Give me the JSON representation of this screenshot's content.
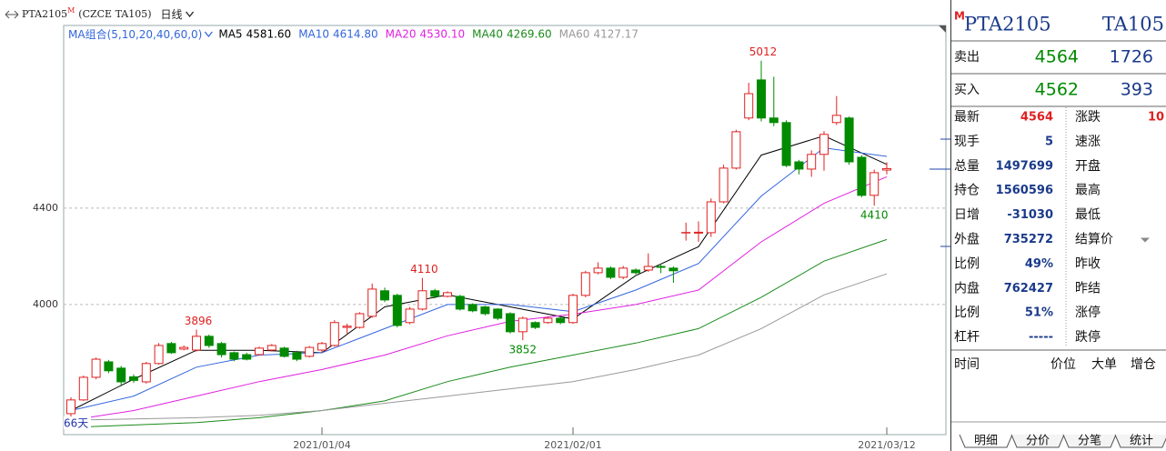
{
  "chart_data": {
    "type": "candlestick",
    "symbol": "PTA2105",
    "symbol_mark": "M",
    "exchange_code": "(CZCE TA105)",
    "period": "日线",
    "indicator_title": "MA组合(5,10,20,40,60,0)",
    "period_count_label": "66天",
    "categories": [
      null,
      null,
      null,
      null,
      null,
      null,
      null,
      null,
      null,
      null,
      null,
      null,
      null,
      null,
      null,
      null,
      null,
      null,
      null,
      null,
      "2021/01/04",
      null,
      null,
      null,
      null,
      null,
      null,
      null,
      null,
      null,
      null,
      null,
      null,
      null,
      null,
      null,
      null,
      null,
      null,
      null,
      "2021/02/01",
      null,
      null,
      null,
      null,
      null,
      null,
      null,
      null,
      null,
      null,
      null,
      null,
      null,
      null,
      null,
      null,
      null,
      null,
      null,
      null,
      null,
      null,
      null,
      null,
      "2021/03/12"
    ],
    "open": [
      3547,
      3604,
      3698,
      3762,
      3736,
      3700,
      3679,
      3755,
      3838,
      3815,
      3811,
      3868,
      3838,
      3800,
      3792,
      3792,
      3811,
      3819,
      3800,
      3785,
      3811,
      3830,
      3905,
      3905,
      3951,
      4057,
      4038,
      3925,
      3981,
      4057,
      4034,
      4034,
      4000,
      3990,
      3981,
      3962,
      3887,
      3925,
      3925,
      3943,
      3925,
      4038,
      4132,
      4151,
      4113,
      4143,
      4143,
      4158,
      4151,
      4298,
      4298,
      4298,
      4426,
      4566,
      4774,
      4932,
      4774,
      4755,
      4592,
      4562,
      4623,
      4755,
      4774,
      4611,
      4453,
      4558
    ],
    "high": [
      3615,
      3705,
      3780,
      3770,
      3745,
      3710,
      3762,
      3840,
      3845,
      3830,
      3896,
      3875,
      3845,
      3805,
      3800,
      3825,
      3836,
      3825,
      3808,
      3828,
      3845,
      3935,
      3920,
      3968,
      4087,
      4070,
      4045,
      3990,
      4110,
      4065,
      4055,
      4040,
      4005,
      3995,
      3985,
      3968,
      3950,
      3930,
      3950,
      3948,
      4045,
      4140,
      4175,
      4158,
      4160,
      4150,
      4212,
      4170,
      4158,
      4340,
      4345,
      4440,
      4580,
      4725,
      4920,
      5012,
      4945,
      4765,
      4600,
      4640,
      4720,
      4865,
      4780,
      4620,
      4560,
      4590
    ],
    "low": [
      3530,
      3600,
      3690,
      3715,
      3665,
      3675,
      3672,
      3750,
      3795,
      3810,
      3805,
      3820,
      3780,
      3765,
      3768,
      3788,
      3805,
      3780,
      3765,
      3780,
      3800,
      3825,
      3880,
      3900,
      3945,
      4010,
      3905,
      3918,
      3975,
      4025,
      4030,
      3975,
      3968,
      3955,
      3935,
      3880,
      3852,
      3898,
      3920,
      3918,
      3920,
      4030,
      4125,
      4105,
      4105,
      4125,
      4135,
      4130,
      4090,
      4265,
      4260,
      4280,
      4420,
      4560,
      4765,
      4760,
      4740,
      4570,
      4540,
      4530,
      4555,
      4745,
      4580,
      4445,
      4410,
      4540
    ],
    "close": [
      3604,
      3698,
      3773,
      3725,
      3679,
      3685,
      3755,
      3830,
      3800,
      3822,
      3868,
      3830,
      3792,
      3773,
      3773,
      3819,
      3830,
      3785,
      3773,
      3822,
      3838,
      3925,
      3910,
      3962,
      4064,
      4019,
      3913,
      3981,
      4057,
      4034,
      4049,
      3981,
      3974,
      3962,
      3943,
      3887,
      3943,
      3905,
      3943,
      3925,
      4038,
      4132,
      4151,
      4113,
      4151,
      4132,
      4158,
      4155,
      4140,
      4298,
      4300,
      4426,
      4566,
      4717,
      4875,
      4774,
      4755,
      4577,
      4562,
      4623,
      4706,
      4785,
      4592,
      4453,
      4547,
      4564
    ],
    "up_color": "#e02020",
    "down_color": "#008a00",
    "ma": [
      {
        "name": "MA5",
        "color": "#000000",
        "current_label": "4581.60",
        "x": [
          0,
          5,
          10,
          15,
          20,
          25,
          30,
          35,
          40,
          45,
          50,
          55,
          60,
          65
        ],
        "values": [
          3560,
          3690,
          3810,
          3810,
          3800,
          3990,
          4040,
          3990,
          3940,
          4120,
          4240,
          4620,
          4700,
          4581.6
        ]
      },
      {
        "name": "MA10",
        "color": "#3366dd",
        "current_label": "4614.80",
        "x": [
          0,
          5,
          10,
          15,
          20,
          25,
          30,
          35,
          40,
          45,
          50,
          55,
          60,
          65
        ],
        "values": [
          3560,
          3620,
          3740,
          3790,
          3800,
          3900,
          4000,
          4000,
          3970,
          4060,
          4170,
          4450,
          4650,
          4614.8
        ]
      },
      {
        "name": "MA20",
        "color": "#e020e0",
        "current_label": "4530.10",
        "x": [
          0,
          5,
          10,
          15,
          20,
          25,
          30,
          35,
          40,
          45,
          50,
          55,
          60,
          65
        ],
        "values": [
          3520,
          3560,
          3620,
          3680,
          3730,
          3790,
          3870,
          3930,
          3960,
          4000,
          4060,
          4260,
          4420,
          4530.1
        ]
      },
      {
        "name": "MA40",
        "color": "#1a8a1a",
        "current_label": "4269.60",
        "x": [
          0,
          5,
          10,
          15,
          20,
          25,
          30,
          35,
          40,
          45,
          50,
          55,
          60,
          65
        ],
        "values": [
          3490,
          3500,
          3510,
          3530,
          3560,
          3600,
          3680,
          3740,
          3790,
          3840,
          3900,
          4030,
          4180,
          4269.6
        ]
      },
      {
        "name": "MA60",
        "color": "#999999",
        "current_label": "4127.17",
        "x": [
          0,
          5,
          10,
          15,
          20,
          25,
          30,
          35,
          40,
          45,
          50,
          55,
          60,
          65
        ],
        "values": [
          3520,
          3525,
          3530,
          3540,
          3560,
          3590,
          3620,
          3650,
          3680,
          3730,
          3790,
          3900,
          4040,
          4127.17
        ]
      }
    ],
    "annotations": [
      {
        "index": 10,
        "value": 3896
      },
      {
        "index": 28,
        "value": 4110
      },
      {
        "index": 36,
        "value": 3852
      },
      {
        "index": 55,
        "value": 5012
      },
      {
        "index": 64,
        "value": 4410
      }
    ],
    "ylim": [
      3460,
      5158
    ],
    "yticks": [
      4000,
      4400
    ],
    "grid": true
  },
  "quote_panel": {
    "mark": "M",
    "symbol": "PTA2105",
    "code": "TA105",
    "ask": {
      "label": "卖出",
      "price": "4564",
      "volume": "1726"
    },
    "bid": {
      "label": "买入",
      "price": "4562",
      "volume": "393"
    },
    "rows": [
      {
        "label": "最新",
        "value": "4564",
        "label2": "涨跌",
        "value2": "10"
      },
      {
        "label": "现手",
        "value": "5",
        "label2": "速涨"
      },
      {
        "label": "总量",
        "value": "1497699",
        "label2": "开盘"
      },
      {
        "label": "持仓",
        "value": "1560596",
        "label2": "最高"
      },
      {
        "label": "日增",
        "value": "-31030",
        "label2": "最低"
      },
      {
        "label": "外盘",
        "value": "735272",
        "label2": "结算价"
      },
      {
        "label": "比例",
        "value": "49%",
        "label2": "昨收"
      },
      {
        "label": "内盘",
        "value": "762427",
        "label2": "昨结"
      },
      {
        "label": "比例",
        "value": "51%",
        "label2": "涨停"
      },
      {
        "label": "杠杆",
        "value": "-----",
        "label2": "跌停"
      }
    ],
    "columns": [
      "时间",
      "价位",
      "大单",
      "增仓"
    ],
    "tabs": [
      "明细",
      "分价",
      "分笔",
      "统计"
    ]
  }
}
